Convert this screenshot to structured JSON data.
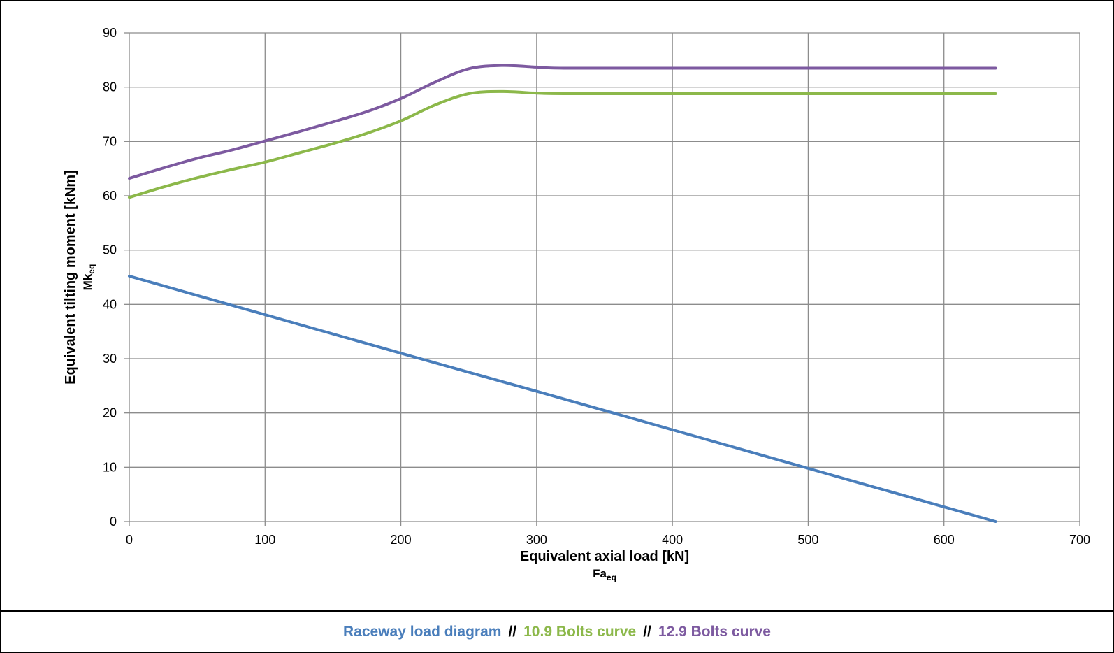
{
  "chart_data": {
    "type": "line",
    "title": "",
    "xlabel": "Equivalent axial load [kN]",
    "xlabel_sub_main": "Fa",
    "xlabel_sub_suffix": "eq",
    "ylabel": "Equivalent tilting moment [kNm]",
    "ylabel_sub_main": "Mk",
    "ylabel_sub_suffix": "eq",
    "xlim": [
      0,
      700
    ],
    "ylim": [
      0,
      90
    ],
    "x_ticks": [
      0,
      100,
      200,
      300,
      400,
      500,
      600,
      700
    ],
    "y_ticks": [
      0,
      10,
      20,
      30,
      40,
      50,
      60,
      70,
      80,
      90
    ],
    "grid": true,
    "series": [
      {
        "name": "Raceway load diagram",
        "color": "#4a7ebb",
        "x": [
          0,
          100,
          200,
          300,
          400,
          500,
          600,
          638
        ],
        "y": [
          45.2,
          38.1,
          31.0,
          24.0,
          16.9,
          9.8,
          2.7,
          0
        ]
      },
      {
        "name": "10.9 Bolts curve",
        "color": "#8cb84a",
        "x": [
          0,
          25,
          50,
          75,
          100,
          125,
          150,
          175,
          200,
          225,
          250,
          275,
          300,
          320,
          400,
          500,
          600,
          638
        ],
        "y": [
          59.7,
          61.6,
          63.3,
          64.8,
          66.2,
          67.9,
          69.6,
          71.5,
          73.8,
          76.7,
          78.8,
          79.2,
          78.9,
          78.8,
          78.8,
          78.8,
          78.8,
          78.8
        ]
      },
      {
        "name": "12.9 Bolts curve",
        "color": "#7d5aa0",
        "x": [
          0,
          25,
          50,
          75,
          100,
          125,
          150,
          175,
          200,
          225,
          250,
          275,
          300,
          320,
          400,
          500,
          600,
          638
        ],
        "y": [
          63.2,
          65.1,
          66.9,
          68.4,
          70.1,
          71.8,
          73.6,
          75.5,
          77.9,
          80.9,
          83.4,
          84.0,
          83.7,
          83.5,
          83.5,
          83.5,
          83.5,
          83.5
        ]
      }
    ],
    "legend_position": "bottom",
    "legend_separator": "//"
  }
}
